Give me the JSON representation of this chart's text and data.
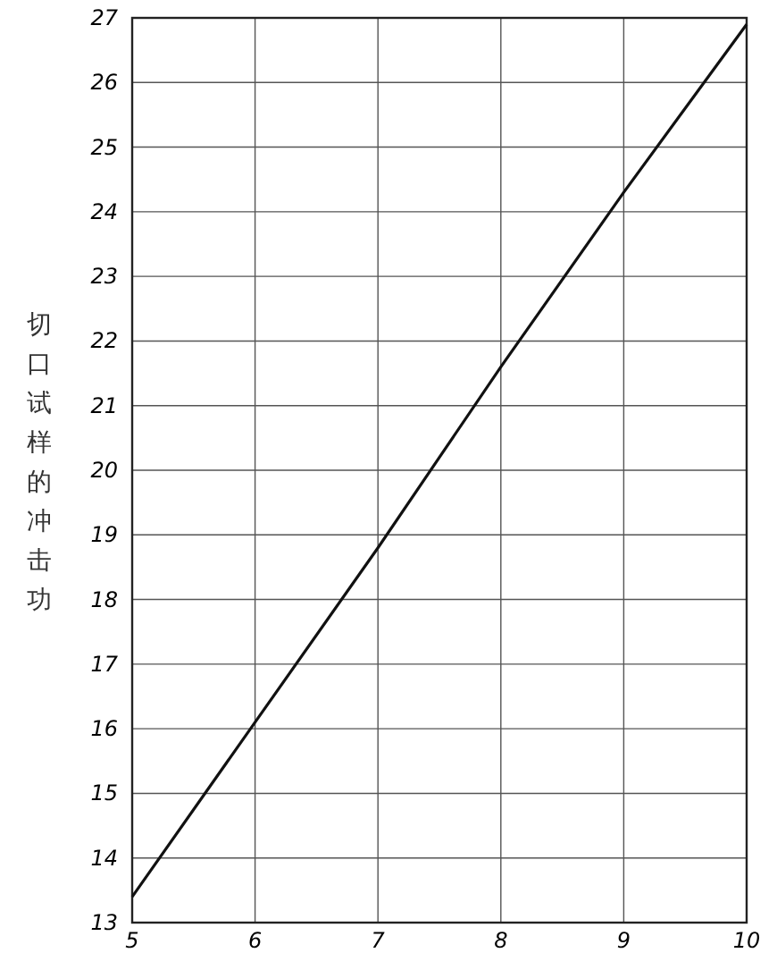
{
  "chart_data": {
    "type": "line",
    "ylabel": "切口试样的冲击功",
    "x": [
      5,
      6,
      7,
      8,
      9,
      10
    ],
    "series": [
      {
        "color": "#111111",
        "values": [
          13.4,
          16.1,
          18.8,
          21.6,
          24.3,
          26.9
        ]
      }
    ],
    "xlim": [
      5,
      10
    ],
    "xticks": [
      5,
      6,
      7,
      8,
      9,
      10
    ],
    "ylim": [
      13,
      27
    ],
    "yticks": [
      13,
      14,
      15,
      16,
      17,
      18,
      19,
      20,
      21,
      22,
      23,
      24,
      25,
      26,
      27
    ],
    "grid": true,
    "marker": "none",
    "line_style": "solid"
  }
}
